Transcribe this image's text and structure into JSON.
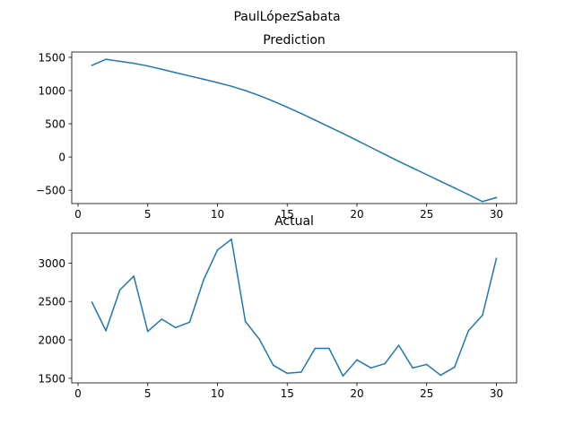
{
  "figure": {
    "suptitle": "PaulLópezSabata"
  },
  "chart_data": [
    {
      "type": "line",
      "title": "Prediction",
      "xlabel": "",
      "ylabel": "",
      "xlim": [
        -0.45,
        31.45
      ],
      "ylim": [
        -700,
        1580
      ],
      "xticks": [
        0,
        5,
        10,
        15,
        20,
        25,
        30
      ],
      "yticks": [
        -500,
        0,
        500,
        1000,
        1500
      ],
      "grid": false,
      "color": "#1f77b4",
      "x": [
        1,
        2,
        3,
        4,
        5,
        6,
        7,
        8,
        9,
        10,
        11,
        12,
        13,
        14,
        15,
        16,
        17,
        18,
        19,
        20,
        21,
        22,
        23,
        24,
        25,
        26,
        27,
        28,
        29,
        30
      ],
      "y": [
        1380,
        1470,
        1440,
        1410,
        1370,
        1320,
        1270,
        1220,
        1170,
        1120,
        1065,
        1000,
        925,
        840,
        750,
        655,
        555,
        455,
        355,
        250,
        145,
        40,
        -65,
        -165,
        -265,
        -365,
        -465,
        -565,
        -670,
        -610
      ]
    },
    {
      "type": "line",
      "title": "Actual",
      "xlabel": "",
      "ylabel": "",
      "xlim": [
        -0.45,
        31.45
      ],
      "ylim": [
        1440,
        3390
      ],
      "xticks": [
        0,
        5,
        10,
        15,
        20,
        25,
        30
      ],
      "yticks": [
        1500,
        2000,
        2500,
        3000
      ],
      "grid": false,
      "color": "#1f77b4",
      "x": [
        1,
        2,
        3,
        4,
        5,
        6,
        7,
        8,
        9,
        10,
        11,
        12,
        13,
        14,
        15,
        16,
        17,
        18,
        19,
        20,
        21,
        22,
        23,
        24,
        25,
        26,
        27,
        28,
        29,
        30
      ],
      "y": [
        2490,
        2120,
        2650,
        2830,
        2110,
        2270,
        2160,
        2230,
        2780,
        3170,
        3310,
        2240,
        2010,
        1670,
        1565,
        1580,
        1890,
        1890,
        1530,
        1740,
        1635,
        1690,
        1930,
        1635,
        1680,
        1540,
        1645,
        2120,
        2320,
        3060
      ]
    }
  ]
}
